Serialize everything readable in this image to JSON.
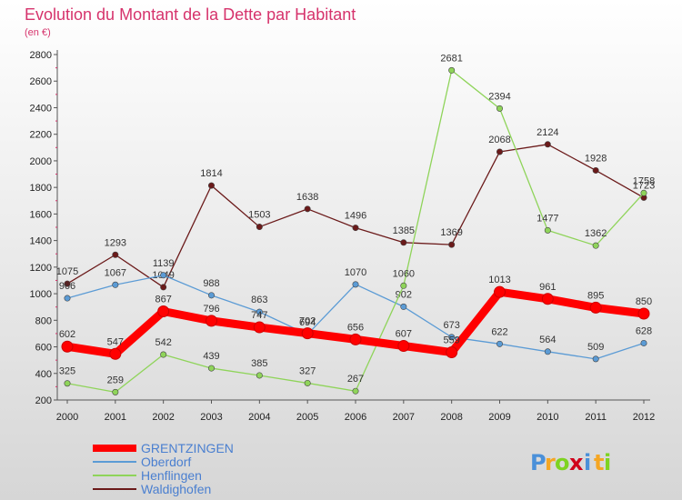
{
  "chart_data": {
    "type": "line",
    "title": "Evolution du Montant de la Dette par Habitant",
    "subtitle": "(en €)",
    "xlabel": "",
    "ylabel": "",
    "x": [
      "2000",
      "2001",
      "2002",
      "2003",
      "2004",
      "2005",
      "2006",
      "2007",
      "2008",
      "2009",
      "2010",
      "2011",
      "2012"
    ],
    "ylim": [
      200,
      2800
    ],
    "yticks": [
      200,
      400,
      600,
      800,
      1000,
      1200,
      1400,
      1600,
      1800,
      2000,
      2200,
      2400,
      2600,
      2800
    ],
    "grid": false,
    "legend_position": "bottom-left",
    "series": [
      {
        "name": "GRENTZINGEN",
        "color": "#ff0000",
        "values": [
          602,
          547,
          867,
          796,
          747,
          702,
          656,
          607,
          559,
          1013,
          961,
          895,
          850
        ],
        "labels": [
          "602",
          "547",
          "867",
          "796",
          "747",
          "702",
          "656",
          "607",
          "559",
          "1013",
          "961",
          "895",
          "850"
        ]
      },
      {
        "name": "Oberdorf",
        "color": "#5b9bd5",
        "values": [
          966,
          1067,
          1139,
          988,
          863,
          694,
          1070,
          902,
          673,
          622,
          564,
          509,
          628
        ],
        "labels": [
          "966",
          "1067",
          "1139",
          "988",
          "863",
          "694",
          "1070",
          "902",
          "673",
          "622",
          "564",
          "509",
          "628"
        ]
      },
      {
        "name": "Henflingen",
        "color": "#8fd45a",
        "values": [
          325,
          259,
          542,
          439,
          385,
          327,
          267,
          1060,
          2681,
          2394,
          1477,
          1362,
          1758
        ],
        "labels": [
          "325",
          "259",
          "542",
          "439",
          "385",
          "327",
          "267",
          "1060",
          "2681",
          "2394",
          "1477",
          "1362",
          "1758"
        ]
      },
      {
        "name": "Waldighofen",
        "color": "#6b1a1a",
        "values": [
          1075,
          1293,
          1049,
          1814,
          1503,
          1638,
          1496,
          1385,
          1369,
          2068,
          2124,
          1928,
          1723
        ],
        "labels": [
          "1075",
          "1293",
          "1049",
          "1814",
          "1503",
          "1638",
          "1496",
          "1385",
          "1369",
          "2068",
          "2124",
          "1928",
          "1723"
        ]
      }
    ]
  },
  "brand": {
    "letters": [
      "P",
      "r",
      "o",
      "x",
      "i",
      "t",
      "i"
    ],
    "colors": [
      "#4a90d9",
      "#f5a623",
      "#7ed321",
      "#d0021b",
      "#4a90d9",
      "#f5a623",
      "#7ed321"
    ]
  }
}
